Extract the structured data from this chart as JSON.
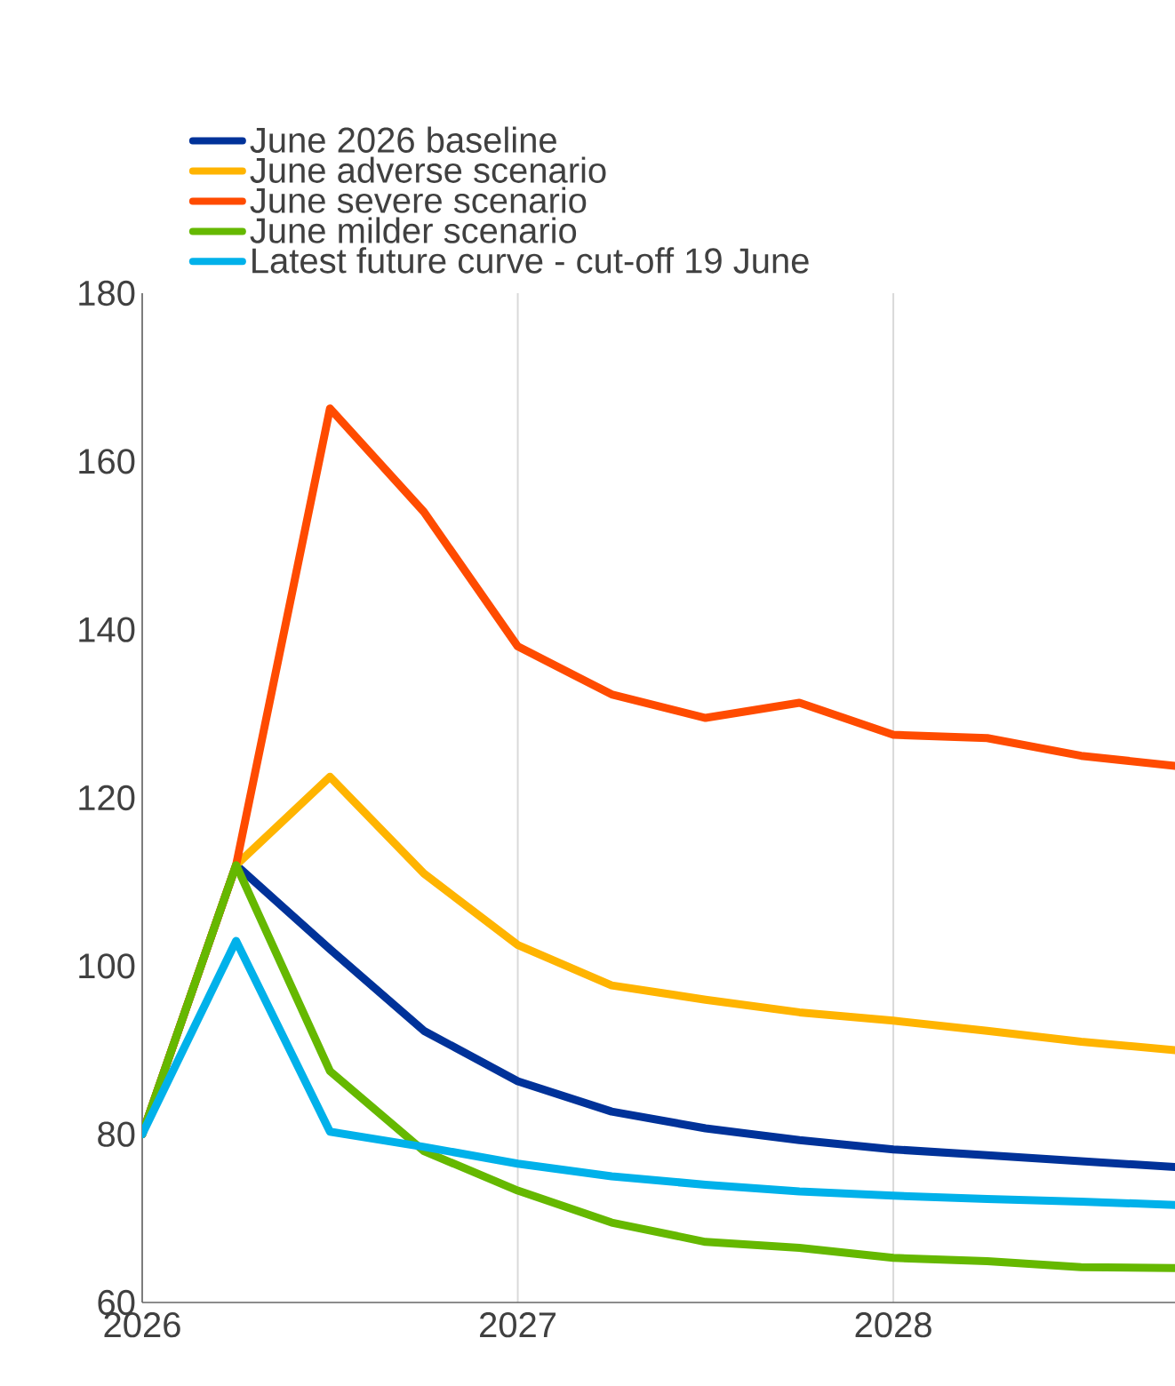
{
  "chart_data": {
    "type": "line",
    "x": [
      2026,
      2026.25,
      2026.5,
      2026.75,
      2027,
      2027.25,
      2027.5,
      2027.75,
      2028,
      2028.25,
      2028.5,
      2028.75
    ],
    "series": [
      {
        "name": "June 2026 baseline",
        "color": "#003299",
        "values": [
          80,
          112,
          102,
          92.3,
          86.3,
          82.7,
          80.7,
          79.3,
          78.2,
          77.5,
          76.8,
          76.1
        ]
      },
      {
        "name": "June adverse scenario",
        "color": "#ffb400",
        "values": [
          80,
          112,
          122.5,
          111,
          102.5,
          97.7,
          96,
          94.5,
          93.5,
          92.3,
          91,
          90
        ]
      },
      {
        "name": "June severe scenario",
        "color": "#ff4b00",
        "values": [
          80,
          112,
          166.3,
          154,
          138,
          132.3,
          129.5,
          131.3,
          127.5,
          127.1,
          125,
          123.8
        ]
      },
      {
        "name": "June milder scenario",
        "color": "#65b800",
        "values": [
          80,
          112,
          87.5,
          78,
          73.3,
          69.5,
          67.2,
          66.5,
          65.3,
          64.9,
          64.2,
          64.1
        ]
      },
      {
        "name": "Latest future curve - cut-off 19 June",
        "color": "#00b1ea",
        "values": [
          80,
          103,
          80.3,
          78.5,
          76.5,
          75,
          74,
          73.2,
          72.7,
          72.3,
          72,
          71.6
        ]
      }
    ],
    "xlim": [
      2026,
      2028.75
    ],
    "xticks": [
      2026,
      2027,
      2028
    ],
    "ylim": [
      60,
      180
    ],
    "yticks": [
      60,
      80,
      100,
      120,
      140,
      160,
      180
    ],
    "grid": "x",
    "legend": "top",
    "line_style": "solid"
  }
}
